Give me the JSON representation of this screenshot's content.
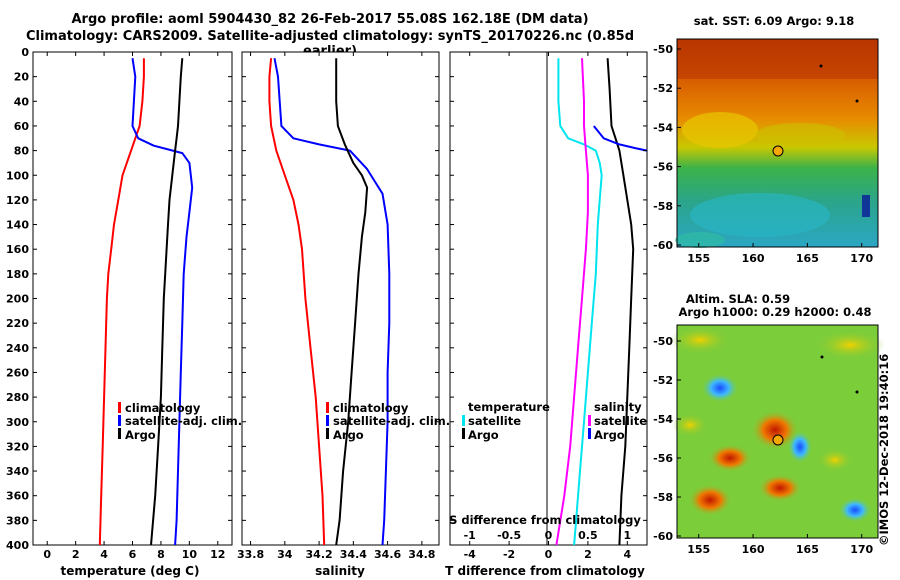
{
  "header": {
    "title_line1": "Argo profile: aoml 5904430_82 26-Feb-2017 55.08S 162.18E (DM data)",
    "title_line2": "Climatology: CARS2009. Satellite-adjusted climatology: synTS_20170226.nc (0.85d earlier)"
  },
  "colors": {
    "climatology": "#ff0000",
    "satellite": "#0000ff",
    "argo": "#000000",
    "salinity_diff": "#ff00ff",
    "temperature_diff": "#00e5ee"
  },
  "chart_data": [
    {
      "id": "temperature",
      "type": "line",
      "xlabel": "temperature (deg C)",
      "ylabel": "",
      "xlim": [
        -1,
        13
      ],
      "xticks": [
        0,
        2,
        4,
        6,
        8,
        10,
        12
      ],
      "ylim": [
        400,
        0
      ],
      "yticks": [
        0,
        20,
        40,
        60,
        80,
        100,
        120,
        140,
        160,
        180,
        200,
        220,
        240,
        260,
        280,
        300,
        320,
        340,
        360,
        380,
        400
      ],
      "legend": [
        "climatology",
        "satellite-adj. clim.",
        "Argo"
      ],
      "series": [
        {
          "name": "climatology",
          "color": "#ff0000",
          "points": [
            [
              6.8,
              5
            ],
            [
              6.8,
              20
            ],
            [
              6.7,
              40
            ],
            [
              6.5,
              60
            ],
            [
              6.2,
              70
            ],
            [
              5.9,
              80
            ],
            [
              5.6,
              90
            ],
            [
              5.3,
              100
            ],
            [
              5.0,
              120
            ],
            [
              4.7,
              140
            ],
            [
              4.5,
              160
            ],
            [
              4.3,
              180
            ],
            [
              4.2,
              200
            ],
            [
              4.1,
              240
            ],
            [
              4.0,
              280
            ],
            [
              3.9,
              320
            ],
            [
              3.8,
              360
            ],
            [
              3.7,
              400
            ]
          ]
        },
        {
          "name": "satellite-adj. clim.",
          "color": "#0000ff",
          "points": [
            [
              6.0,
              5
            ],
            [
              6.2,
              20
            ],
            [
              6.1,
              40
            ],
            [
              6.0,
              60
            ],
            [
              6.4,
              70
            ],
            [
              7.5,
              76
            ],
            [
              8.5,
              79
            ],
            [
              9.5,
              82
            ],
            [
              10.0,
              90
            ],
            [
              10.2,
              110
            ],
            [
              10.0,
              130
            ],
            [
              9.8,
              150
            ],
            [
              9.6,
              180
            ],
            [
              9.5,
              220
            ],
            [
              9.4,
              260
            ],
            [
              9.3,
              300
            ],
            [
              9.2,
              340
            ],
            [
              9.1,
              380
            ],
            [
              9.0,
              400
            ]
          ]
        },
        {
          "name": "Argo",
          "color": "#000000",
          "points": [
            [
              9.5,
              5
            ],
            [
              9.4,
              20
            ],
            [
              9.3,
              40
            ],
            [
              9.2,
              60
            ],
            [
              9.1,
              70
            ],
            [
              9.0,
              80
            ],
            [
              8.8,
              100
            ],
            [
              8.6,
              120
            ],
            [
              8.5,
              140
            ],
            [
              8.4,
              160
            ],
            [
              8.3,
              180
            ],
            [
              8.2,
              200
            ],
            [
              8.1,
              240
            ],
            [
              8.0,
              280
            ],
            [
              7.8,
              320
            ],
            [
              7.6,
              360
            ],
            [
              7.3,
              400
            ]
          ]
        }
      ]
    },
    {
      "id": "salinity",
      "type": "line",
      "xlabel": "salinity",
      "ylabel": "",
      "xlim": [
        33.75,
        34.9
      ],
      "xticks": [
        33.8,
        34,
        34.2,
        34.4,
        34.6,
        34.8
      ],
      "xtick_labels": [
        "33.8",
        "34",
        "34.2",
        "34.4",
        "34.6",
        "34.8"
      ],
      "ylim": [
        400,
        0
      ],
      "legend": [
        "climatology",
        "satellite-adj. clim.",
        "Argo"
      ],
      "series": [
        {
          "name": "climatology",
          "color": "#ff0000",
          "points": [
            [
              33.92,
              5
            ],
            [
              33.91,
              20
            ],
            [
              33.91,
              40
            ],
            [
              33.92,
              60
            ],
            [
              33.95,
              80
            ],
            [
              34.0,
              100
            ],
            [
              34.05,
              120
            ],
            [
              34.08,
              140
            ],
            [
              34.1,
              160
            ],
            [
              34.12,
              200
            ],
            [
              34.15,
              240
            ],
            [
              34.18,
              280
            ],
            [
              34.2,
              320
            ],
            [
              34.22,
              360
            ],
            [
              34.23,
              400
            ]
          ]
        },
        {
          "name": "satellite-adj. clim.",
          "color": "#0000ff",
          "points": [
            [
              33.94,
              5
            ],
            [
              33.96,
              20
            ],
            [
              33.97,
              40
            ],
            [
              33.98,
              60
            ],
            [
              34.05,
              70
            ],
            [
              34.2,
              75
            ],
            [
              34.38,
              80
            ],
            [
              34.48,
              95
            ],
            [
              34.57,
              115
            ],
            [
              34.6,
              140
            ],
            [
              34.61,
              180
            ],
            [
              34.61,
              220
            ],
            [
              34.6,
              260
            ],
            [
              34.6,
              300
            ],
            [
              34.59,
              340
            ],
            [
              34.58,
              380
            ],
            [
              34.57,
              400
            ]
          ]
        },
        {
          "name": "Argo",
          "color": "#000000",
          "points": [
            [
              34.3,
              5
            ],
            [
              34.3,
              40
            ],
            [
              34.31,
              60
            ],
            [
              34.35,
              75
            ],
            [
              34.4,
              90
            ],
            [
              34.45,
              100
            ],
            [
              34.48,
              110
            ],
            [
              34.47,
              130
            ],
            [
              34.45,
              150
            ],
            [
              34.43,
              180
            ],
            [
              34.41,
              220
            ],
            [
              34.39,
              260
            ],
            [
              34.37,
              300
            ],
            [
              34.34,
              340
            ],
            [
              34.32,
              380
            ],
            [
              34.3,
              400
            ]
          ]
        }
      ]
    },
    {
      "id": "difference",
      "type": "line",
      "xlabel": "T difference from climatology",
      "ylabel": "",
      "xlim": [
        -5,
        5
      ],
      "xticks": [
        -4,
        -2,
        0,
        2,
        4
      ],
      "top_axis_label": "S difference from climatology",
      "top_xticks": [
        "-1",
        "-0.5",
        "0",
        "0.5",
        "1"
      ],
      "ylim": [
        400,
        0
      ],
      "legend_left": [
        "temperature",
        "satellite",
        "Argo"
      ],
      "legend_right": [
        "salinity",
        "satellite",
        "Argo"
      ],
      "series": [
        {
          "name": "T satellite",
          "color": "#00e5ee",
          "points": [
            [
              0.5,
              5
            ],
            [
              0.5,
              40
            ],
            [
              0.6,
              60
            ],
            [
              1.0,
              70
            ],
            [
              1.8,
              75
            ],
            [
              2.4,
              80
            ],
            [
              2.6,
              90
            ],
            [
              2.7,
              100
            ],
            [
              2.6,
              120
            ],
            [
              2.5,
              140
            ],
            [
              2.4,
              180
            ],
            [
              2.2,
              220
            ],
            [
              2.0,
              260
            ],
            [
              1.8,
              300
            ],
            [
              1.6,
              340
            ],
            [
              1.4,
              380
            ],
            [
              1.3,
              400
            ]
          ]
        },
        {
          "name": "T Argo",
          "color": "#000000",
          "points": [
            [
              3.0,
              5
            ],
            [
              3.1,
              30
            ],
            [
              3.2,
              60
            ],
            [
              3.4,
              70
            ],
            [
              3.6,
              80
            ],
            [
              3.8,
              100
            ],
            [
              4.0,
              120
            ],
            [
              4.2,
              140
            ],
            [
              4.3,
              160
            ],
            [
              4.2,
              200
            ],
            [
              4.1,
              240
            ],
            [
              4.0,
              280
            ],
            [
              3.9,
              320
            ],
            [
              3.7,
              360
            ],
            [
              3.6,
              400
            ]
          ]
        },
        {
          "name": "S satellite",
          "color": "#ff00ff",
          "points": [
            [
              1.7,
              5
            ],
            [
              1.8,
              40
            ],
            [
              1.8,
              60
            ],
            [
              1.9,
              80
            ],
            [
              2.0,
              100
            ],
            [
              2.0,
              130
            ],
            [
              1.9,
              160
            ],
            [
              1.7,
              200
            ],
            [
              1.5,
              240
            ],
            [
              1.3,
              280
            ],
            [
              1.1,
              320
            ],
            [
              0.8,
              360
            ],
            [
              0.4,
              400
            ]
          ]
        },
        {
          "name": "S Argo",
          "color": "#0000ff",
          "points": [
            [
              2.3,
              60
            ],
            [
              2.8,
              70
            ],
            [
              3.6,
              75
            ],
            [
              4.4,
              78
            ],
            [
              5.0,
              80
            ]
          ]
        }
      ]
    }
  ],
  "maps": [
    {
      "id": "sst-map",
      "title": "sat. SST: 6.09 Argo: 9.18",
      "xticks": [
        "155",
        "160",
        "165",
        "170"
      ],
      "yticks": [
        "-50",
        "-52",
        "-54",
        "-56",
        "-58",
        "-60"
      ]
    },
    {
      "id": "sla-map",
      "title_line1": "Altim. SLA: 0.59",
      "title_line2": "Argo h1000: 0.29 h2000: 0.48",
      "xticks": [
        "155",
        "160",
        "165",
        "170"
      ],
      "yticks": [
        "-50",
        "-52",
        "-54",
        "-56",
        "-58",
        "-60"
      ]
    }
  ],
  "credit": "©IMOS 12-Dec-2018 19:40:16"
}
